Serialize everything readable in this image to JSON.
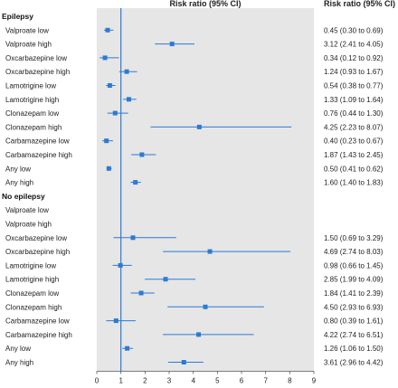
{
  "chart_data": {
    "type": "forest",
    "column_headers": {
      "plot": "Risk ratio (95% CI)",
      "values": "Risk ratio (95% CI)"
    },
    "xlim": [
      0,
      9
    ],
    "x_ticks": [
      "0",
      "1",
      "2",
      "3",
      "4",
      "5",
      "6",
      "7",
      "8",
      "9"
    ],
    "reference_line": 1,
    "colors": {
      "marker": "#2b7bd4",
      "panel": "#e6e6e6",
      "reference": "#2b7bd4"
    },
    "groups": [
      {
        "name": "Epilepsy",
        "rows": [
          {
            "label": "Valproate low",
            "rr": 0.45,
            "lo": 0.3,
            "hi": 0.69,
            "text": "0.45 (0.30 to 0.69)"
          },
          {
            "label": "Valproate high",
            "rr": 3.12,
            "lo": 2.41,
            "hi": 4.05,
            "text": "3.12 (2.41 to 4.05)"
          },
          {
            "label": "Oxcarbazepine low",
            "rr": 0.34,
            "lo": 0.12,
            "hi": 0.92,
            "text": "0.34 (0.12 to 0.92)"
          },
          {
            "label": "Oxcarbazepine high",
            "rr": 1.24,
            "lo": 0.93,
            "hi": 1.67,
            "text": "1.24 (0.93 to 1.67)"
          },
          {
            "label": "Lamotrigine low",
            "rr": 0.54,
            "lo": 0.38,
            "hi": 0.77,
            "text": "0.54 (0.38 to 0.77)"
          },
          {
            "label": "Lamotrigine high",
            "rr": 1.33,
            "lo": 1.09,
            "hi": 1.64,
            "text": "1.33 (1.09 to 1.64)"
          },
          {
            "label": "Clonazepam low",
            "rr": 0.76,
            "lo": 0.44,
            "hi": 1.3,
            "text": "0.76 (0.44 to 1.30)"
          },
          {
            "label": "Clonazepam high",
            "rr": 4.25,
            "lo": 2.23,
            "hi": 8.07,
            "text": "4.25 (2.23 to 8.07)"
          },
          {
            "label": "Carbamazepine low",
            "rr": 0.4,
            "lo": 0.23,
            "hi": 0.67,
            "text": "0.40 (0.23 to 0.67)"
          },
          {
            "label": "Carbamazepine high",
            "rr": 1.87,
            "lo": 1.43,
            "hi": 2.45,
            "text": "1.87 (1.43 to 2.45)"
          },
          {
            "label": "Any low",
            "rr": 0.5,
            "lo": 0.41,
            "hi": 0.62,
            "text": "0.50 (0.41 to 0.62)"
          },
          {
            "label": "Any high",
            "rr": 1.6,
            "lo": 1.4,
            "hi": 1.83,
            "text": "1.60 (1.40 to 1.83)"
          }
        ]
      },
      {
        "name": "No epilepsy",
        "rows": [
          {
            "label": "Valproate low",
            "rr": null,
            "lo": null,
            "hi": null,
            "text": ""
          },
          {
            "label": "Valproate high",
            "rr": null,
            "lo": null,
            "hi": null,
            "text": ""
          },
          {
            "label": "Oxcarbazepine low",
            "rr": 1.5,
            "lo": 0.69,
            "hi": 3.29,
            "text": "1.50 (0.69 to 3.29)"
          },
          {
            "label": "Oxcarbazepine high",
            "rr": 4.69,
            "lo": 2.74,
            "hi": 8.03,
            "text": "4.69 (2.74 to 8.03)"
          },
          {
            "label": "Lamotrigine low",
            "rr": 0.98,
            "lo": 0.66,
            "hi": 1.45,
            "text": "0.98 (0.66 to 1.45)"
          },
          {
            "label": "Lamotrigine high",
            "rr": 2.85,
            "lo": 1.99,
            "hi": 4.09,
            "text": "2.85 (1.99 to 4.09)"
          },
          {
            "label": "Clonazepam low",
            "rr": 1.84,
            "lo": 1.41,
            "hi": 2.39,
            "text": "1.84 (1.41 to 2.39)"
          },
          {
            "label": "Clonazepam high",
            "rr": 4.5,
            "lo": 2.93,
            "hi": 6.93,
            "text": "4.50 (2.93 to 6.93)"
          },
          {
            "label": "Carbamazepine low",
            "rr": 0.8,
            "lo": 0.39,
            "hi": 1.61,
            "text": "0.80 (0.39 to 1.61)"
          },
          {
            "label": "Carbamazepine high",
            "rr": 4.22,
            "lo": 2.74,
            "hi": 6.51,
            "text": "4.22 (2.74 to 6.51)"
          },
          {
            "label": "Any low",
            "rr": 1.26,
            "lo": 1.06,
            "hi": 1.5,
            "text": "1.26 (1.06 to 1.50)"
          },
          {
            "label": "Any high",
            "rr": 3.61,
            "lo": 2.96,
            "hi": 4.42,
            "text": "3.61 (2.96 to 4.42)"
          }
        ]
      }
    ]
  }
}
